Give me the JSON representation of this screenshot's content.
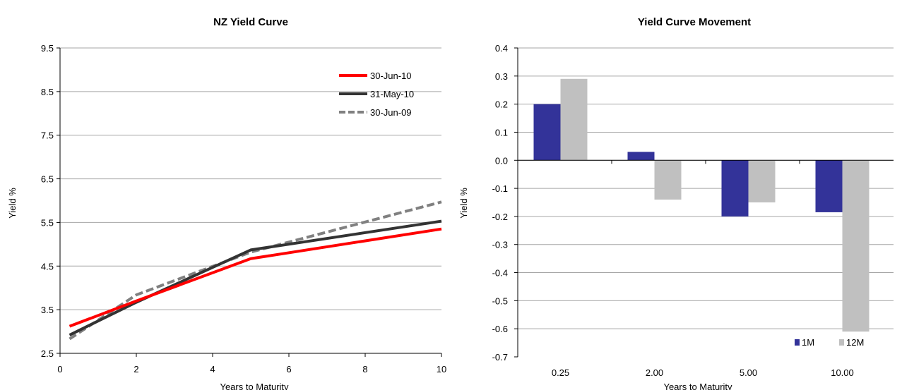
{
  "chart_data": [
    {
      "type": "line",
      "title": "NZ Yield Curve",
      "xlabel": "Years to Maturity",
      "ylabel": "Yield %",
      "xlim": [
        0,
        10
      ],
      "ylim": [
        2.5,
        9.5
      ],
      "xticks": [
        "0",
        "2",
        "4",
        "6",
        "8",
        "10"
      ],
      "yticks": [
        "2.5",
        "3.5",
        "4.5",
        "5.5",
        "6.5",
        "7.5",
        "8.5",
        "9.5"
      ],
      "grid": true,
      "legend_position": "top-right",
      "series": [
        {
          "name": "30-Jun-10",
          "color": "#ff0000",
          "dash": "solid",
          "x": [
            0.25,
            2,
            5,
            10
          ],
          "y": [
            3.12,
            3.7,
            4.67,
            5.35
          ]
        },
        {
          "name": "31-May-10",
          "color": "#333333",
          "dash": "solid",
          "x": [
            0.25,
            2,
            5,
            10
          ],
          "y": [
            2.92,
            3.67,
            4.87,
            5.53
          ]
        },
        {
          "name": "30-Jun-09",
          "color": "#808080",
          "dash": "dashed",
          "x": [
            0.25,
            2,
            5,
            10
          ],
          "y": [
            2.83,
            3.84,
            4.82,
            5.97
          ]
        }
      ]
    },
    {
      "type": "bar",
      "title": "Yield Curve Movement",
      "xlabel": "Years to Maturity",
      "ylabel": "Yield %",
      "ylim": [
        -0.7,
        0.4
      ],
      "yticks": [
        "0.4",
        "0.3",
        "0.2",
        "0.1",
        "0.0",
        "-0.1",
        "-0.2",
        "-0.3",
        "-0.4",
        "-0.5",
        "-0.6",
        "-0.7"
      ],
      "categories": [
        "0.25",
        "2.00",
        "5.00",
        "10.00"
      ],
      "grid": true,
      "legend_position": "bottom-right",
      "series": [
        {
          "name": "1M",
          "color": "#333399",
          "values": [
            0.2,
            0.03,
            -0.2,
            -0.185
          ]
        },
        {
          "name": "12M",
          "color": "#c0c0c0",
          "values": [
            0.29,
            -0.14,
            -0.15,
            -0.61
          ]
        }
      ]
    }
  ]
}
